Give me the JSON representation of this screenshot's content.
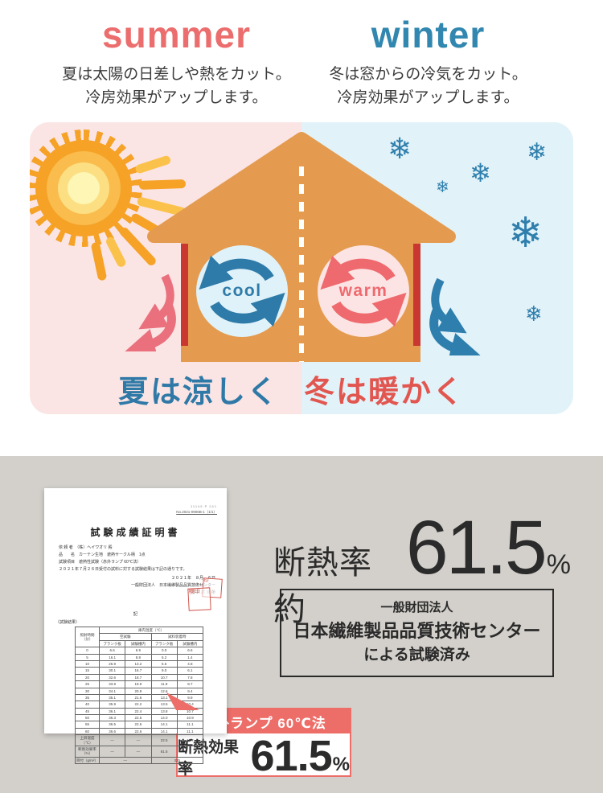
{
  "header": {
    "summer": {
      "title": "summer",
      "line1": "夏は太陽の日差しや熱をカット。",
      "line2": "冷房効果がアップします。"
    },
    "winter": {
      "title": "winter",
      "line1": "冬は窓からの冷気をカット。",
      "line2": "冷房効果がアップします。"
    }
  },
  "illustration": {
    "cool_label": "cool",
    "warm_label": "warm",
    "summer_caption": "夏は涼しく",
    "winter_caption": "冬は暖かく",
    "snowflake_icon": "❄"
  },
  "certificate": {
    "ref_line1": "11149 P 241",
    "ref_line2": "No.2021-0906B-1（1/1）",
    "title": "試験成績証明書",
    "info_lines": [
      "依 頼 者　（株）ヘイワオリ 殿",
      "品　　名　カーテン生地　遮熱サークル柄　1点",
      "試験項目　遮熱性試験（赤外ランプ 60℃法）",
      "２０２１年７月２６日受付の試料に対する試験結果は下記の通りです。"
    ],
    "date_line": "２０２１年　８月　６日",
    "org_line": "一般財団法人　日本繊維製品品質技術センター",
    "branch_line": "福 井 試 験 所",
    "note": "記",
    "result_label": "（試験結果）",
    "stamp1": "印",
    "stamp2": "検印",
    "table": {
      "time_header": "照射時間（分）",
      "temp_header": "庫内温度（℃）",
      "group_headers": [
        "空試験",
        "試料装着時"
      ],
      "sub_headers": [
        "ブランク板",
        "試験槽内",
        "ブランク板",
        "試験槽内"
      ],
      "rows": [
        [
          "0",
          "6.6",
          "6.9",
          "0.0",
          "6.6"
        ],
        [
          "5",
          "16.1",
          "8.8",
          "5.2",
          "1.4"
        ],
        [
          "10",
          "26.9",
          "13.2",
          "6.6",
          "4.8"
        ],
        [
          "15",
          "30.1",
          "16.7",
          "9.0",
          "6.1"
        ],
        [
          "20",
          "32.6",
          "18.7",
          "10.7",
          "7.8"
        ],
        [
          "25",
          "33.9",
          "19.9",
          "11.9",
          "8.7"
        ],
        [
          "30",
          "34.1",
          "20.9",
          "12.6",
          "9.4"
        ],
        [
          "35",
          "35.1",
          "21.6",
          "13.1",
          "9.9"
        ],
        [
          "40",
          "35.9",
          "22.2",
          "13.5",
          "10.4"
        ],
        [
          "45",
          "36.1",
          "22.4",
          "13.8",
          "10.7"
        ],
        [
          "50",
          "36.3",
          "22.5",
          "14.0",
          "10.9"
        ],
        [
          "55",
          "36.5",
          "22.6",
          "14.1",
          "11.1"
        ],
        [
          "60",
          "36.6",
          "22.6",
          "14.1",
          "11.1"
        ],
        [
          "上昇温度（℃）",
          "―",
          "―",
          "22.5",
          "11.7"
        ],
        [
          "断熱効果率（%）",
          "―",
          "―",
          "61.5",
          ""
        ],
        [
          "目付（g/m²）",
          "―",
          "325"
        ]
      ]
    }
  },
  "result": {
    "rate_prefix": "断熱率約",
    "rate_value": "61.5",
    "rate_unit": "%",
    "org_box": {
      "line1": "一般財団法人",
      "line2": "日本繊維製品品質技術センター",
      "line3": "による試験済み"
    },
    "callout": {
      "method": "赤外ランプ 60℃法",
      "label": "断熱効果率",
      "value": "61.5",
      "unit": "%"
    }
  },
  "colors": {
    "summer_accent": "#EC6D6D",
    "winter_accent": "#3187AF",
    "pink_bg": "#FBE4E4",
    "blue_bg": "#E1F2F9",
    "house_orange": "#E49B4F",
    "curtain_red": "#C93730",
    "cool_blue": "#2E7BA9",
    "warm_coral": "#EE6A6E",
    "caption_blue": "#2F79A7",
    "caption_red": "#E25650",
    "snow_blue": "#2F7FAD",
    "gray_bg": "#D3D0CB",
    "callout_coral": "#ED6D68",
    "text_dark": "#2B2B2B"
  }
}
